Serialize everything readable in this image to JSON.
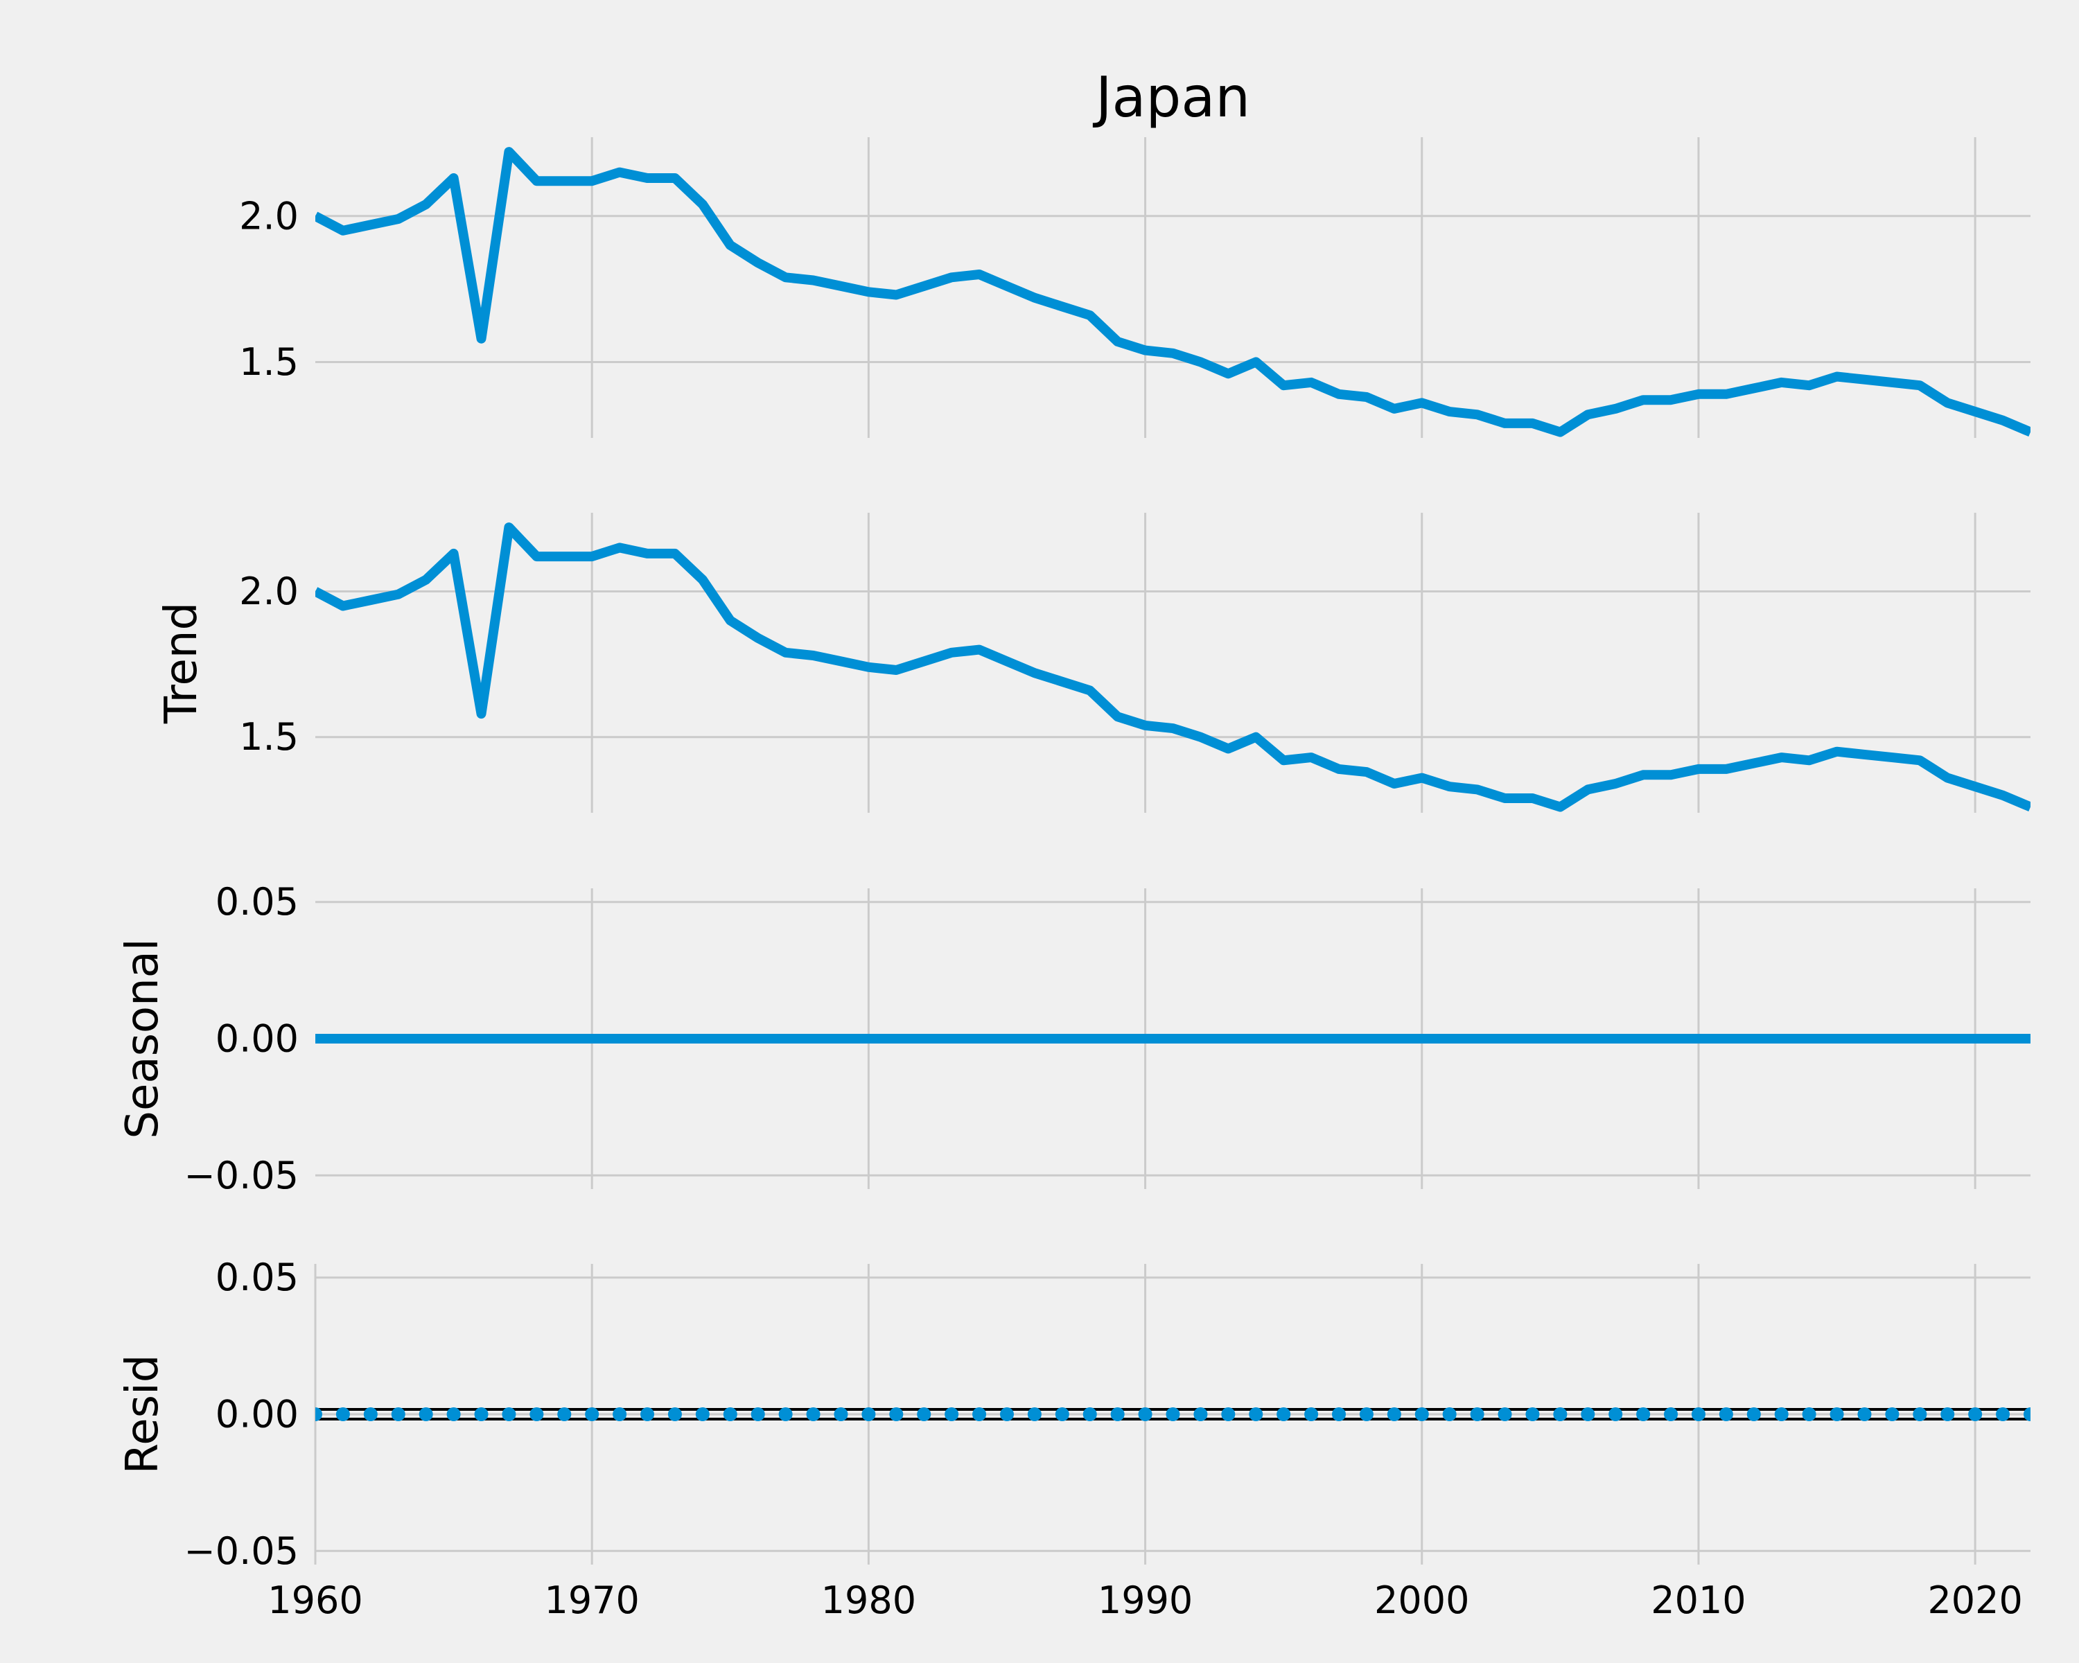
{
  "chart_data": [
    {
      "type": "line",
      "panel": "observed",
      "title": "Japan",
      "ylabel": "",
      "x_start": 1960,
      "x_end": 2022,
      "xlim": [
        1960,
        2022
      ],
      "ylim": [
        1.24,
        2.27
      ],
      "yticks": [
        1.5,
        2.0
      ],
      "ytick_labels": [
        "1.5",
        "2.0"
      ],
      "xticks": [
        1970,
        1980,
        1990,
        2000,
        2010,
        2020
      ],
      "show_xtick_labels": false,
      "grid": true,
      "series": [
        {
          "name": "",
          "values": [
            2.0,
            1.95,
            1.97,
            1.99,
            2.04,
            2.13,
            1.58,
            2.22,
            2.12,
            2.12,
            2.12,
            2.15,
            2.13,
            2.13,
            2.04,
            1.9,
            1.84,
            1.79,
            1.78,
            1.76,
            1.74,
            1.73,
            1.76,
            1.79,
            1.8,
            1.76,
            1.72,
            1.69,
            1.66,
            1.57,
            1.54,
            1.53,
            1.5,
            1.46,
            1.5,
            1.42,
            1.43,
            1.39,
            1.38,
            1.34,
            1.36,
            1.33,
            1.32,
            1.29,
            1.29,
            1.26,
            1.32,
            1.34,
            1.37,
            1.37,
            1.39,
            1.39,
            1.41,
            1.43,
            1.42,
            1.45,
            1.44,
            1.43,
            1.42,
            1.36,
            1.33,
            1.3,
            1.26
          ]
        }
      ]
    },
    {
      "type": "line",
      "panel": "trend",
      "title": "",
      "ylabel": "Trend",
      "x_start": 1960,
      "x_end": 2022,
      "xlim": [
        1960,
        2022
      ],
      "ylim": [
        1.24,
        2.27
      ],
      "yticks": [
        1.5,
        2.0
      ],
      "ytick_labels": [
        "1.5",
        "2.0"
      ],
      "xticks": [
        1970,
        1980,
        1990,
        2000,
        2010,
        2020
      ],
      "show_xtick_labels": false,
      "grid": true,
      "series": [
        {
          "name": "",
          "values": [
            2.0,
            1.95,
            1.97,
            1.99,
            2.04,
            2.13,
            1.58,
            2.22,
            2.12,
            2.12,
            2.12,
            2.15,
            2.13,
            2.13,
            2.04,
            1.9,
            1.84,
            1.79,
            1.78,
            1.76,
            1.74,
            1.73,
            1.76,
            1.79,
            1.8,
            1.76,
            1.72,
            1.69,
            1.66,
            1.57,
            1.54,
            1.53,
            1.5,
            1.46,
            1.5,
            1.42,
            1.43,
            1.39,
            1.38,
            1.34,
            1.36,
            1.33,
            1.32,
            1.29,
            1.29,
            1.26,
            1.32,
            1.34,
            1.37,
            1.37,
            1.39,
            1.39,
            1.41,
            1.43,
            1.42,
            1.45,
            1.44,
            1.43,
            1.42,
            1.36,
            1.33,
            1.3,
            1.26
          ]
        }
      ]
    },
    {
      "type": "line",
      "panel": "seasonal",
      "title": "",
      "ylabel": "Seasonal",
      "x_start": 1960,
      "x_end": 2022,
      "xlim": [
        1960,
        2022
      ],
      "ylim": [
        -0.055,
        0.055
      ],
      "yticks": [
        -0.05,
        0.0,
        0.05
      ],
      "ytick_labels": [
        "−0.05",
        "0.00",
        "0.05"
      ],
      "xticks": [
        1970,
        1980,
        1990,
        2000,
        2010,
        2020
      ],
      "show_xtick_labels": false,
      "grid": true,
      "series": [
        {
          "name": "",
          "values": [
            0,
            0,
            0,
            0,
            0,
            0,
            0,
            0,
            0,
            0,
            0,
            0,
            0,
            0,
            0,
            0,
            0,
            0,
            0,
            0,
            0,
            0,
            0,
            0,
            0,
            0,
            0,
            0,
            0,
            0,
            0,
            0,
            0,
            0,
            0,
            0,
            0,
            0,
            0,
            0,
            0,
            0,
            0,
            0,
            0,
            0,
            0,
            0,
            0,
            0,
            0,
            0,
            0,
            0,
            0,
            0,
            0,
            0,
            0,
            0,
            0,
            0,
            0
          ]
        }
      ]
    },
    {
      "type": "scatter",
      "panel": "resid",
      "title": "",
      "ylabel": "Resid",
      "x_start": 1960,
      "x_end": 2022,
      "xlim": [
        1960,
        2022
      ],
      "ylim": [
        -0.055,
        0.055
      ],
      "yticks": [
        -0.05,
        0.0,
        0.05
      ],
      "ytick_labels": [
        "−0.05",
        "0.00",
        "0.05"
      ],
      "xticks": [
        1960,
        1970,
        1980,
        1990,
        2000,
        2010,
        2020
      ],
      "xtick_labels": [
        "1960",
        "1970",
        "1980",
        "1990",
        "2000",
        "2010",
        "2020"
      ],
      "show_xtick_labels": true,
      "grid": true,
      "zero_line": true,
      "series": [
        {
          "name": "",
          "values": [
            0,
            0,
            0,
            0,
            0,
            0,
            0,
            0,
            0,
            0,
            0,
            0,
            0,
            0,
            0,
            0,
            0,
            0,
            0,
            0,
            0,
            0,
            0,
            0,
            0,
            0,
            0,
            0,
            0,
            0,
            0,
            0,
            0,
            0,
            0,
            0,
            0,
            0,
            0,
            0,
            0,
            0,
            0,
            0,
            0,
            0,
            0,
            0,
            0,
            0,
            0,
            0,
            0,
            0,
            0,
            0,
            0,
            0,
            0,
            0,
            0,
            0,
            0
          ]
        }
      ]
    }
  ]
}
